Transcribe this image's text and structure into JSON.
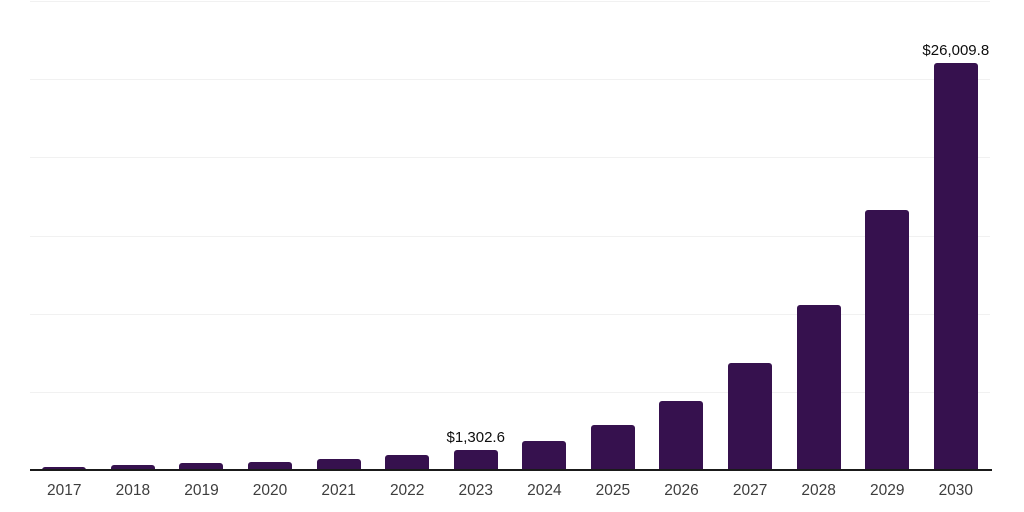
{
  "chart_data": {
    "type": "bar",
    "title": "",
    "xlabel": "",
    "ylabel": "",
    "categories": [
      "2017",
      "2018",
      "2019",
      "2020",
      "2021",
      "2022",
      "2023",
      "2024",
      "2025",
      "2026",
      "2027",
      "2028",
      "2029",
      "2030"
    ],
    "values": [
      220,
      320,
      450,
      540,
      690,
      950,
      1302.6,
      1890,
      2880,
      4410,
      6860,
      10550,
      16650,
      26009.8
    ],
    "value_labels": [
      "",
      "",
      "",
      "",
      "",
      "",
      "$1,302.6",
      "",
      "",
      "",
      "",
      "",
      "",
      "$26,009.8"
    ],
    "ylim": [
      0,
      30000
    ],
    "gridline_step": 5000,
    "grid": true,
    "legend": "none"
  },
  "colors": {
    "bar": "#36114E",
    "grid": "#F1F1F1",
    "axis": "#1A1A1A",
    "tick_label": "#3D3D3D",
    "data_label": "#0D0D0D",
    "background": "#FFFFFF"
  }
}
